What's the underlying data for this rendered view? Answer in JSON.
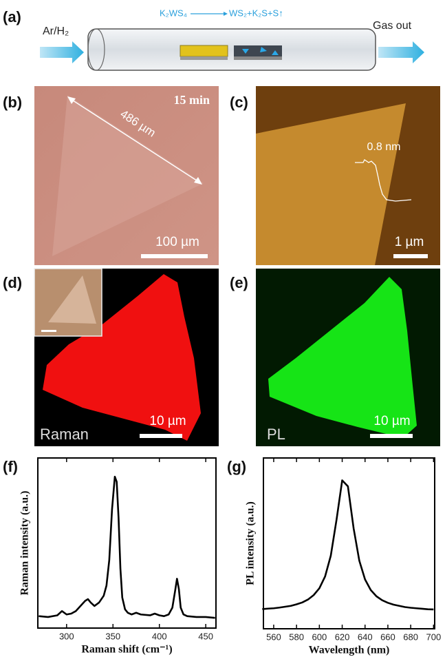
{
  "panels": {
    "a": {
      "label": "(a)",
      "inlet": "Ar/H₂",
      "outlet": "Gas out",
      "reactant": "K₂WS₄",
      "products": "WS₂+K₂S+S↑"
    },
    "b": {
      "label": "(b)",
      "time": "15 min",
      "size": "486 µm",
      "scale": "100 µm"
    },
    "c": {
      "label": "(c)",
      "height": "0.8 nm",
      "scale": "1 µm"
    },
    "d": {
      "label": "(d)",
      "mode": "Raman",
      "scale": "10 µm"
    },
    "e": {
      "label": "(e)",
      "mode": "PL",
      "scale": "10 µm"
    }
  },
  "chart_data": [
    {
      "type": "line",
      "panel_label": "(f)",
      "xlabel": "Raman shift (cm⁻¹)",
      "ylabel": "Raman intensity (a.u.)",
      "color": "#000000",
      "x": [
        270,
        280,
        290,
        295,
        300,
        305,
        310,
        315,
        320,
        323,
        326,
        330,
        335,
        340,
        343,
        346,
        349,
        352,
        354,
        356,
        358,
        360,
        363,
        366,
        370,
        375,
        380,
        390,
        395,
        400,
        405,
        410,
        414,
        417,
        419,
        421,
        423,
        426,
        430,
        440,
        450,
        460
      ],
      "values": [
        0.07,
        0.065,
        0.075,
        0.1,
        0.08,
        0.085,
        0.1,
        0.13,
        0.16,
        0.17,
        0.15,
        0.13,
        0.15,
        0.19,
        0.25,
        0.4,
        0.7,
        0.89,
        0.86,
        0.65,
        0.35,
        0.18,
        0.11,
        0.09,
        0.08,
        0.09,
        0.08,
        0.075,
        0.085,
        0.075,
        0.07,
        0.08,
        0.12,
        0.22,
        0.29,
        0.23,
        0.12,
        0.08,
        0.07,
        0.065,
        0.065,
        0.06
      ],
      "xlim": [
        269,
        461
      ],
      "xticks": [
        300,
        350,
        400,
        450
      ],
      "ylim": [
        0,
        1
      ]
    },
    {
      "type": "line",
      "panel_label": "(g)",
      "xlabel": "Wavelength (nm)",
      "ylabel": "PL intensity (a.u.)",
      "color": "#000000",
      "x": [
        550,
        555,
        560,
        565,
        570,
        575,
        580,
        585,
        590,
        595,
        600,
        605,
        610,
        615,
        620,
        625,
        630,
        635,
        640,
        645,
        650,
        655,
        660,
        665,
        670,
        675,
        680,
        685,
        690,
        695,
        700
      ],
      "values": [
        0.115,
        0.118,
        0.12,
        0.124,
        0.129,
        0.134,
        0.143,
        0.154,
        0.171,
        0.197,
        0.237,
        0.306,
        0.428,
        0.637,
        0.869,
        0.834,
        0.588,
        0.398,
        0.289,
        0.227,
        0.19,
        0.167,
        0.152,
        0.141,
        0.134,
        0.127,
        0.123,
        0.12,
        0.117,
        0.114,
        0.113
      ],
      "xlim": [
        551,
        701
      ],
      "xticks": [
        560,
        580,
        600,
        620,
        640,
        660,
        680,
        700
      ],
      "ylim": [
        0,
        1
      ]
    }
  ]
}
